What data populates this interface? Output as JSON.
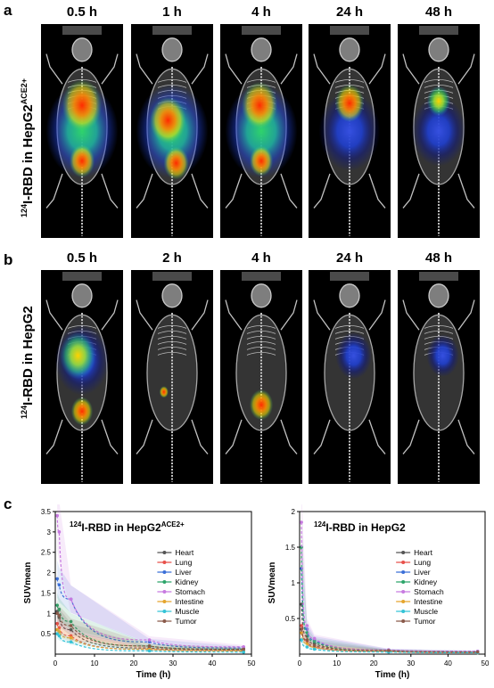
{
  "figure": {
    "panel_a": {
      "letter": "a",
      "row_label_prefix": "124",
      "row_label_main": "I-RBD in HepG2",
      "row_label_sup": "ACE2+",
      "timepoints": [
        "0.5 h",
        "1 h",
        "4 h",
        "24 h",
        "48 h"
      ]
    },
    "panel_b": {
      "letter": "b",
      "row_label_prefix": "124",
      "row_label_main": "I-RBD in HepG2",
      "timepoints": [
        "0.5 h",
        "2 h",
        "4 h",
        "24 h",
        "48 h"
      ]
    },
    "panel_c": {
      "letter": "c"
    },
    "colors": {
      "hot_red": "#ff2a00",
      "hot_yellow": "#f5e400",
      "hot_green": "#2fd36a",
      "hot_blue": "#1f3fd0"
    }
  },
  "chart_data": [
    {
      "type": "line",
      "title_prefix": "124",
      "title_main": "I-RBD in HepG2",
      "title_sup": "ACE2+",
      "xlabel": "Time (h)",
      "ylabel": "SUVmean",
      "xlim": [
        0,
        50
      ],
      "ylim": [
        0,
        3.5
      ],
      "xticks": [
        "0",
        "10",
        "20",
        "30",
        "40",
        "50"
      ],
      "yticks": [
        "0.5",
        "1",
        "1.5",
        "2",
        "2.5",
        "3",
        "3.5"
      ],
      "x": [
        0.5,
        1,
        4,
        24,
        48
      ],
      "legend_position": "right",
      "series": [
        {
          "name": "Heart",
          "color": "#555555",
          "values": [
            1.05,
            0.9,
            0.6,
            0.15,
            0.1
          ]
        },
        {
          "name": "Lung",
          "color": "#e8504a",
          "values": [
            0.75,
            0.65,
            0.45,
            0.12,
            0.08
          ]
        },
        {
          "name": "Liver",
          "color": "#3b6fd8",
          "values": [
            1.85,
            1.7,
            1.35,
            0.3,
            0.15
          ]
        },
        {
          "name": "Kidney",
          "color": "#2ca56a",
          "values": [
            1.2,
            1.1,
            0.8,
            0.2,
            0.12
          ]
        },
        {
          "name": "Stomach",
          "color": "#c77ae0",
          "values": [
            3.4,
            3.0,
            1.35,
            0.35,
            0.18
          ]
        },
        {
          "name": "Intestine",
          "color": "#e5a52e",
          "values": [
            0.6,
            0.55,
            0.4,
            0.12,
            0.08
          ]
        },
        {
          "name": "Muscle",
          "color": "#34c3d6",
          "values": [
            0.5,
            0.45,
            0.3,
            0.08,
            0.05
          ]
        },
        {
          "name": "Tumor",
          "color": "#8a5a4a",
          "values": [
            1.0,
            0.95,
            0.7,
            0.2,
            0.12
          ]
        }
      ]
    },
    {
      "type": "line",
      "title_prefix": "124",
      "title_main": "I-RBD in HepG2",
      "xlabel": "Time (h)",
      "ylabel": "SUVmean",
      "xlim": [
        0,
        50
      ],
      "ylim": [
        0,
        2
      ],
      "xticks": [
        "0",
        "10",
        "20",
        "30",
        "40",
        "50"
      ],
      "yticks": [
        "0.5",
        "1",
        "1.5",
        "2"
      ],
      "x": [
        0.5,
        2,
        4,
        24,
        48
      ],
      "legend_position": "right",
      "series": [
        {
          "name": "Heart",
          "color": "#555555",
          "values": [
            0.7,
            0.25,
            0.15,
            0.05,
            0.03
          ]
        },
        {
          "name": "Lung",
          "color": "#e8504a",
          "values": [
            0.4,
            0.18,
            0.1,
            0.04,
            0.02
          ]
        },
        {
          "name": "Liver",
          "color": "#3b6fd8",
          "values": [
            1.2,
            0.35,
            0.2,
            0.06,
            0.04
          ]
        },
        {
          "name": "Kidney",
          "color": "#2ca56a",
          "values": [
            1.5,
            0.3,
            0.18,
            0.05,
            0.03
          ]
        },
        {
          "name": "Stomach",
          "color": "#c77ae0",
          "values": [
            1.85,
            0.4,
            0.22,
            0.06,
            0.04
          ]
        },
        {
          "name": "Intestine",
          "color": "#e5a52e",
          "values": [
            0.3,
            0.15,
            0.1,
            0.04,
            0.02
          ]
        },
        {
          "name": "Muscle",
          "color": "#34c3d6",
          "values": [
            0.2,
            0.1,
            0.07,
            0.03,
            0.02
          ]
        },
        {
          "name": "Tumor",
          "color": "#8a5a4a",
          "values": [
            0.35,
            0.2,
            0.12,
            0.05,
            0.03
          ]
        }
      ]
    }
  ]
}
